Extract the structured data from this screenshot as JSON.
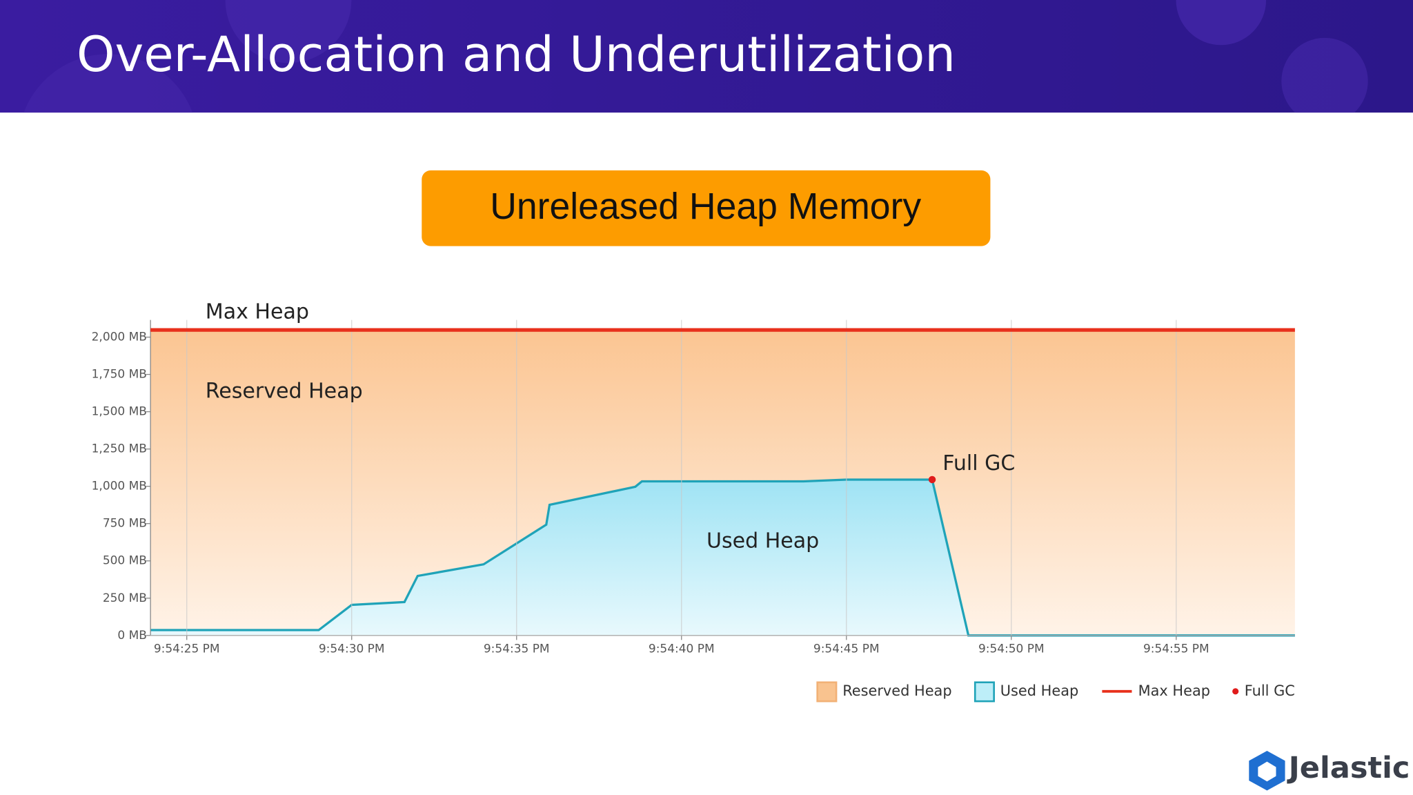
{
  "slide": {
    "title": "Over-Allocation and Underutilization",
    "badge": "Unreleased Heap Memory",
    "logo": "Jelastic"
  },
  "chart_data": {
    "type": "area",
    "annotations": [
      "Max Heap",
      "Reserved Heap",
      "Full GC",
      "Used Heap"
    ],
    "xlim": [
      78863.9,
      78898.6
    ],
    "xticks": [
      {
        "value": 78865,
        "label": "9:54:25 PM"
      },
      {
        "value": 78870,
        "label": "9:54:30 PM"
      },
      {
        "value": 78875,
        "label": "9:54:35 PM"
      },
      {
        "value": 78880,
        "label": "9:54:40 PM"
      },
      {
        "value": 78885,
        "label": "9:54:45 PM"
      },
      {
        "value": 78890,
        "label": "9:54:50 PM"
      },
      {
        "value": 78895,
        "label": "9:54:55 PM"
      }
    ],
    "ylim": [
      0,
      2115
    ],
    "yticks": [
      {
        "value": 0,
        "label": "0 MB"
      },
      {
        "value": 250,
        "label": "250 MB"
      },
      {
        "value": 500,
        "label": "500 MB"
      },
      {
        "value": 750,
        "label": "750 MB"
      },
      {
        "value": 1000,
        "label": "1,000 MB"
      },
      {
        "value": 1250,
        "label": "1,250 MB"
      },
      {
        "value": 1500,
        "label": "1,500 MB"
      },
      {
        "value": 1750,
        "label": "1,750 MB"
      },
      {
        "value": 2000,
        "label": "2,000 MB"
      }
    ],
    "grid": "x",
    "legend": "bottom-right",
    "series": [
      {
        "name": "Reserved Heap",
        "kind": "area",
        "color": "#f9c38f",
        "x": [
          78863.9,
          78898.6
        ],
        "values": [
          2048,
          2048
        ]
      },
      {
        "name": "Used Heap",
        "kind": "area",
        "color": "#1fa3b8",
        "x": [
          78863.9,
          78869.0,
          78870.0,
          78871.6,
          78872.0,
          78874.0,
          78875.9,
          78876.0,
          78878.6,
          78878.8,
          78883.7,
          78885.0,
          78887.6,
          78888.7,
          78898.6
        ],
        "values": [
          36,
          36,
          205,
          224,
          399,
          477,
          743,
          876,
          997,
          1033,
          1033,
          1045,
          1045,
          0,
          0
        ]
      },
      {
        "name": "Max Heap",
        "kind": "line",
        "color": "#e8301c",
        "x": [
          78863.9,
          78898.6
        ],
        "values": [
          2048,
          2048
        ]
      },
      {
        "name": "Full GC",
        "kind": "point",
        "color": "#e01b1b",
        "x": [
          78887.6
        ],
        "values": [
          1045
        ]
      }
    ]
  }
}
